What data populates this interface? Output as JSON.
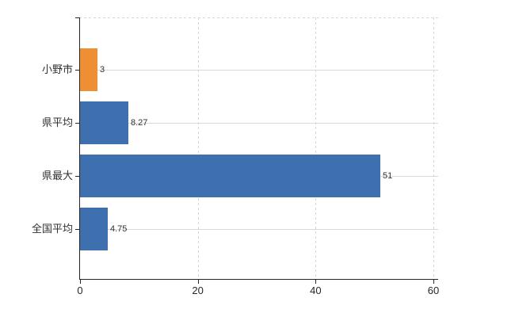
{
  "chart_data": {
    "type": "bar",
    "orientation": "horizontal",
    "title": "",
    "categories": [
      "小野市",
      "県平均",
      "県最大",
      "全国平均"
    ],
    "values": [
      3,
      8.27,
      51,
      4.75
    ],
    "value_labels": [
      "3",
      "8.27",
      "51",
      "4.75"
    ],
    "bar_colors": [
      "#EE8F33",
      "#3E6FAE",
      "#3E6FAE",
      "#3E6FAE"
    ],
    "xlim": [
      0,
      60
    ],
    "x_ticks": [
      0,
      20,
      40,
      60
    ],
    "grid": {
      "vertical": "dashed at x ticks",
      "horizontal": "solid at category centers",
      "top_border": "dashed"
    },
    "legend": "none"
  },
  "colors": {
    "highlight_bar": "#EE8F33",
    "default_bar": "#3E6FAE",
    "gridline": "#D9D9D9",
    "axis": "#262626",
    "label_text": "#303030",
    "background": "#FFFFFF"
  }
}
